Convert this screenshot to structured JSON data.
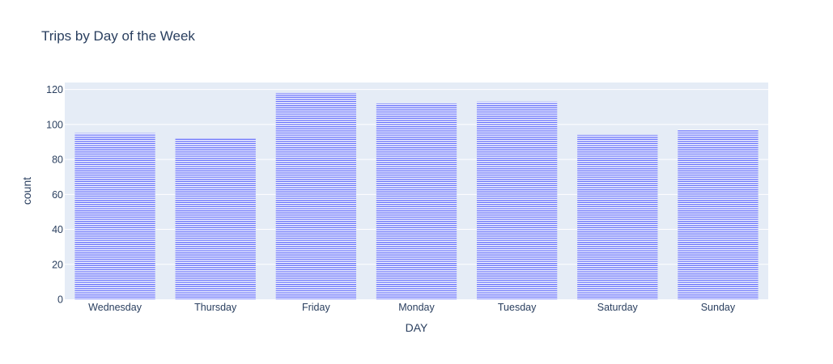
{
  "chart_data": {
    "type": "bar",
    "title": "Trips by Day of the Week",
    "xlabel": "DAY",
    "ylabel": "count",
    "categories": [
      "Wednesday",
      "Thursday",
      "Friday",
      "Monday",
      "Tuesday",
      "Saturday",
      "Sunday"
    ],
    "values": [
      95,
      92,
      118,
      112,
      113,
      94,
      97
    ],
    "ylim": [
      0,
      124
    ],
    "yticks": [
      0,
      20,
      40,
      60,
      80,
      100,
      120
    ],
    "ytick_labels": [
      "0",
      "20",
      "40",
      "60",
      "80",
      "100",
      "120"
    ],
    "grid": true,
    "colors": {
      "plot_bg": "#e5ecf6",
      "bar_fill": "#636efa",
      "grid": "#ffffff",
      "text": "#2a3f5f"
    }
  }
}
